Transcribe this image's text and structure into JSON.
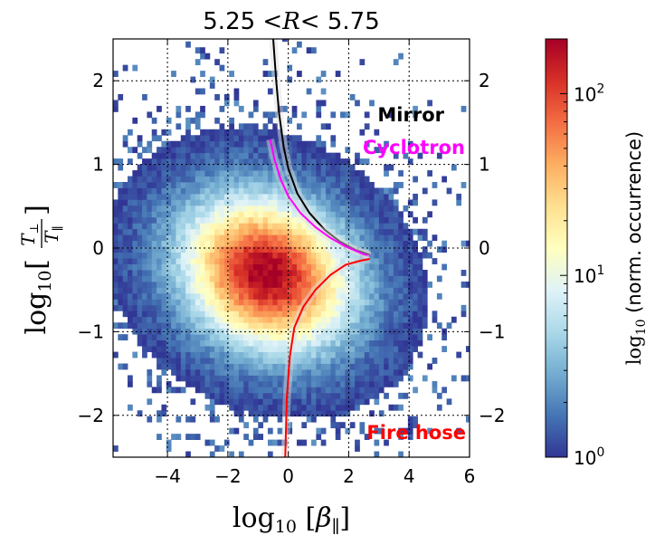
{
  "chart_data": {
    "type": "heatmap",
    "title": {
      "left": "5.25",
      "middle": " <R< ",
      "right": "5.75"
    },
    "xlabel": "log10[β∥]",
    "ylabel": "log10[T⊥/T∥]",
    "xlim": [
      -5.8,
      6
    ],
    "ylim": [
      -2.5,
      2.5
    ],
    "xticks": [
      -4,
      -2,
      0,
      2,
      4,
      6
    ],
    "xtick_labels": [
      "−4",
      "−2",
      "0",
      "2",
      "4",
      "6"
    ],
    "yticks": [
      2,
      1,
      0,
      -1,
      -2
    ],
    "ytick_labels": [
      "2",
      "1",
      "0",
      "−1",
      "−2"
    ],
    "grid": true,
    "colormap": "RdYlBu_r",
    "colorbar": {
      "label": "log10 (norm. occurrence)",
      "scale": "log",
      "range": [
        1,
        200
      ],
      "ticks": [
        {
          "value": 1,
          "base": "10",
          "exp": "0"
        },
        {
          "value": 10,
          "base": "10",
          "exp": "1"
        },
        {
          "value": 100,
          "base": "10",
          "exp": "2"
        }
      ]
    },
    "density_peak": {
      "x": -0.7,
      "y": -0.3,
      "value": 200
    },
    "threshold_curves": [
      {
        "name": "Mirror",
        "color": "#000000",
        "points": [
          [
            -0.5,
            2.5
          ],
          [
            -0.4,
            2.0
          ],
          [
            -0.3,
            1.6
          ],
          [
            -0.15,
            1.2
          ],
          [
            0.0,
            0.95
          ],
          [
            0.3,
            0.65
          ],
          [
            0.7,
            0.42
          ],
          [
            1.2,
            0.22
          ],
          [
            1.7,
            0.08
          ],
          [
            2.2,
            -0.02
          ],
          [
            2.7,
            -0.08
          ]
        ]
      },
      {
        "name": "Cyclotron",
        "color": "#ff00ff",
        "points": [
          [
            -0.6,
            1.3
          ],
          [
            -0.45,
            1.05
          ],
          [
            -0.25,
            0.82
          ],
          [
            0.0,
            0.62
          ],
          [
            0.4,
            0.42
          ],
          [
            0.9,
            0.25
          ],
          [
            1.4,
            0.12
          ],
          [
            1.9,
            0.02
          ],
          [
            2.4,
            -0.06
          ],
          [
            2.7,
            -0.1
          ]
        ]
      },
      {
        "name": "Fire hose",
        "color": "#ff0000",
        "points": [
          [
            -0.1,
            -2.5
          ],
          [
            -0.05,
            -1.8
          ],
          [
            0.05,
            -1.3
          ],
          [
            0.2,
            -0.95
          ],
          [
            0.5,
            -0.7
          ],
          [
            0.9,
            -0.5
          ],
          [
            1.4,
            -0.32
          ],
          [
            1.9,
            -0.2
          ],
          [
            2.4,
            -0.15
          ],
          [
            2.7,
            -0.13
          ]
        ]
      }
    ],
    "annotations": [
      {
        "text": "Mirror",
        "color": "#000000"
      },
      {
        "text": "Cyclotron",
        "color": "#ff00ff"
      },
      {
        "text": "Fire hose",
        "color": "#ff0000"
      }
    ]
  }
}
